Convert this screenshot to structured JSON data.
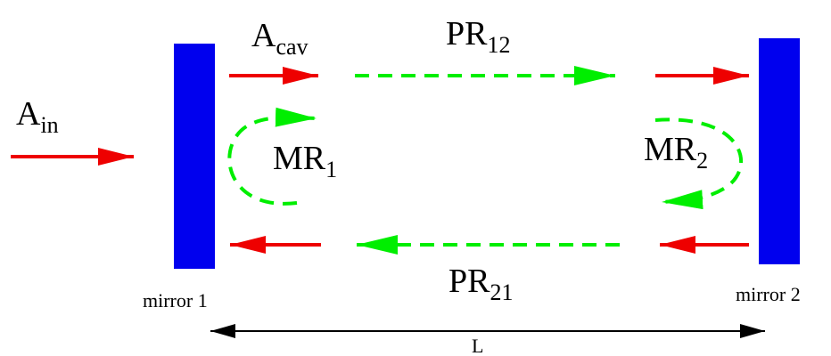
{
  "colors": {
    "mirror": "#0000ee",
    "field_arrow": "#ee0000",
    "round_trip": "#00ee00",
    "length": "#000000"
  },
  "labels": {
    "a_in": {
      "base": "A",
      "sub": "in"
    },
    "a_cav": {
      "base": "A",
      "sub": "cav"
    },
    "pr12": {
      "base": "PR",
      "sub": "12"
    },
    "pr21": {
      "base": "PR",
      "sub": "21"
    },
    "mr1": {
      "base": "MR",
      "sub": "1"
    },
    "mr2": {
      "base": "MR",
      "sub": "2"
    },
    "mirror1": "mirror 1",
    "mirror2": "mirror 2",
    "length": "L"
  }
}
